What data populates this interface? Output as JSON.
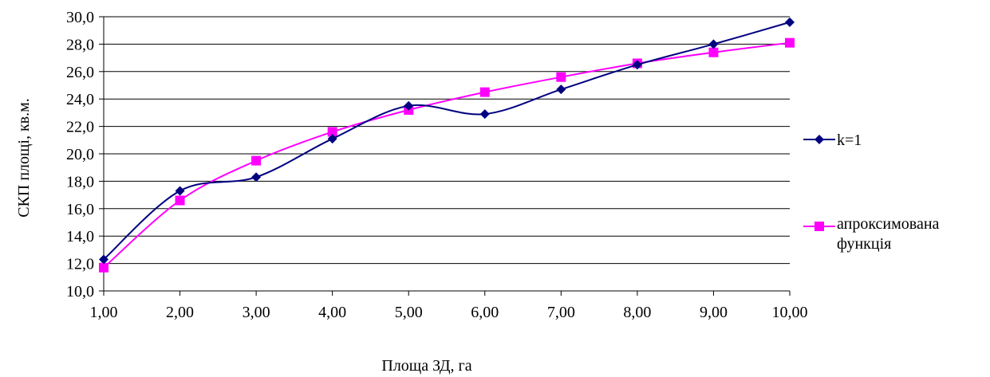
{
  "chart_data": {
    "type": "line",
    "x": [
      1,
      2,
      3,
      4,
      5,
      6,
      7,
      8,
      9,
      10
    ],
    "x_tick_labels": [
      "1,00",
      "2,00",
      "3,00",
      "4,00",
      "5,00",
      "6,00",
      "7,00",
      "8,00",
      "9,00",
      "10,00"
    ],
    "y_tick_labels": [
      "10,0",
      "12,0",
      "14,0",
      "16,0",
      "18,0",
      "20,0",
      "22,0",
      "24,0",
      "26,0",
      "28,0",
      "30,0"
    ],
    "y_ticks": [
      10,
      12,
      14,
      16,
      18,
      20,
      22,
      24,
      26,
      28,
      30
    ],
    "xlim": [
      1,
      10
    ],
    "ylim": [
      10,
      30
    ],
    "xlabel": "Площа ЗД, га",
    "ylabel": "СКП площі, кв.м.",
    "grid": "horizontal",
    "legend_position": "right",
    "smooth": true,
    "series": [
      {
        "name": "k=1",
        "color": "#000080",
        "marker": "diamond",
        "values": [
          12.3,
          17.3,
          18.3,
          21.1,
          23.5,
          22.9,
          24.7,
          26.5,
          28.0,
          29.6
        ]
      },
      {
        "name_lines": [
          "апроксимована",
          "функція"
        ],
        "color": "#ff00ff",
        "marker": "square",
        "values": [
          11.7,
          16.6,
          19.5,
          21.6,
          23.2,
          24.5,
          25.6,
          26.6,
          27.4,
          28.1
        ]
      }
    ]
  }
}
